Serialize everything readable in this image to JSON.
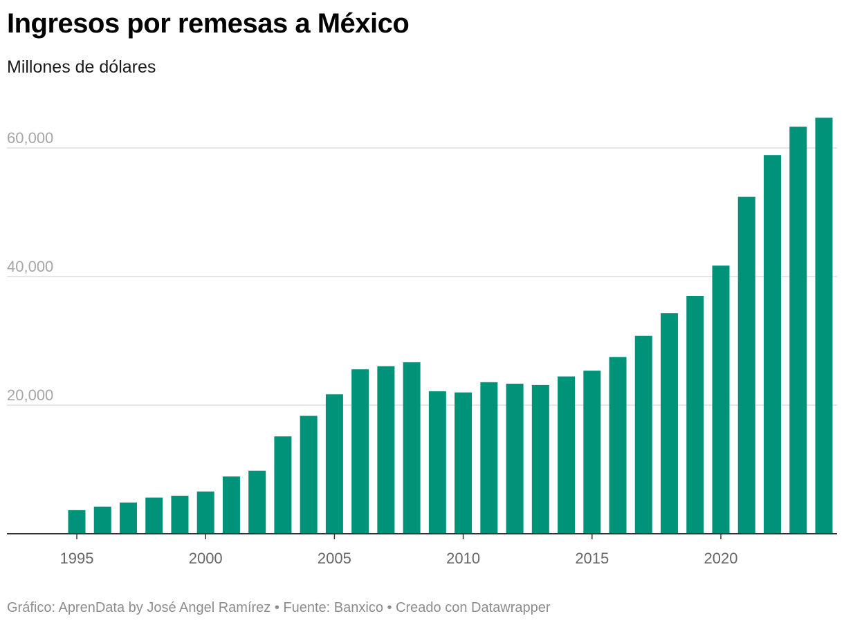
{
  "header": {
    "title": "Ingresos por remesas a México",
    "subtitle": "Millones de dólares"
  },
  "footer": {
    "text": "Gráfico: AprenData by José Angel Ramírez • Fuente: Banxico • Creado con Datawrapper"
  },
  "colors": {
    "bar": "#009379",
    "grid": "#dddddd",
    "axis": "#333333"
  },
  "chart_data": {
    "type": "bar",
    "title": "Ingresos por remesas a México",
    "subtitle": "Millones de dólares",
    "xlabel": "",
    "ylabel": "",
    "categories": [
      1995,
      1996,
      1997,
      1998,
      1999,
      2000,
      2001,
      2002,
      2003,
      2004,
      2005,
      2006,
      2007,
      2008,
      2009,
      2010,
      2011,
      2012,
      2013,
      2014,
      2015,
      2016,
      2017,
      2018,
      2019,
      2020,
      2021,
      2022,
      2023,
      2024
    ],
    "values": [
      3670,
      4220,
      4860,
      5630,
      5910,
      6570,
      8900,
      9810,
      15140,
      18330,
      21690,
      25570,
      26060,
      26660,
      22160,
      21980,
      23570,
      23340,
      23130,
      24460,
      25360,
      27490,
      30780,
      34290,
      36990,
      41700,
      52400,
      58900,
      63300,
      64700
    ],
    "x_ticks": [
      "1995",
      "2000",
      "2005",
      "2010",
      "2015",
      "2020"
    ],
    "y_ticks": [
      20000,
      40000,
      60000
    ],
    "y_tick_labels": [
      "20,000",
      "40,000",
      "60,000"
    ],
    "ylim": [
      0,
      66000
    ],
    "grid": true,
    "legend": "none"
  }
}
